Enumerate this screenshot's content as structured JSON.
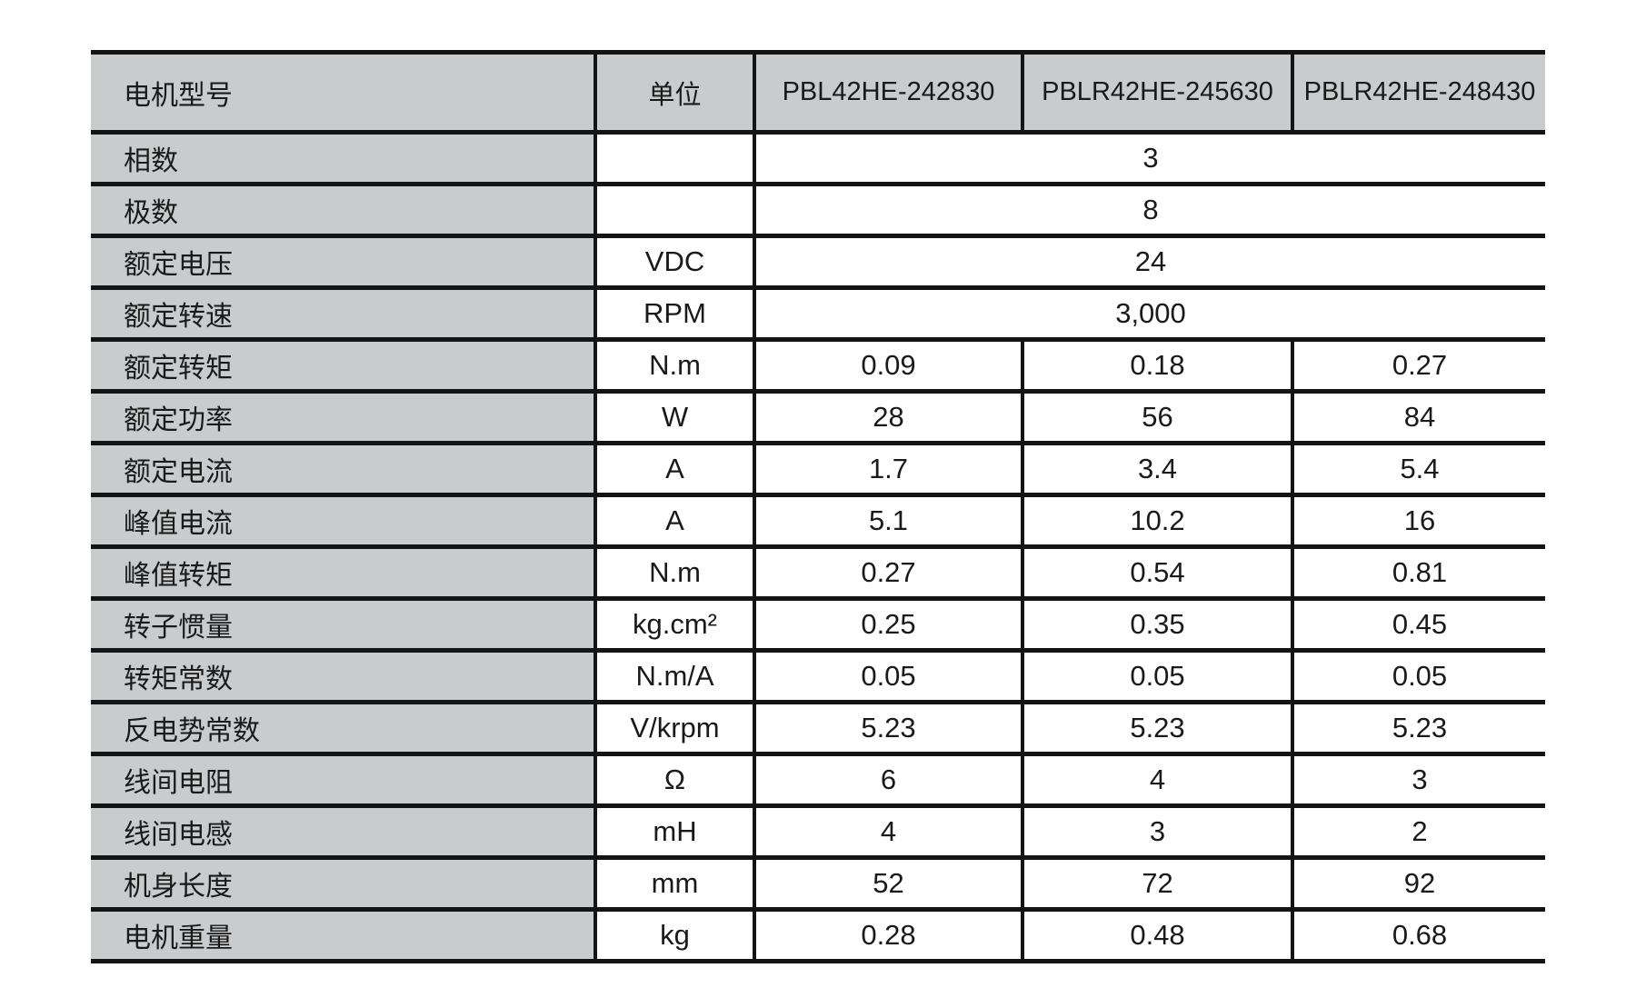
{
  "table": {
    "header": {
      "label": "电机型号",
      "unit": "单位",
      "models": [
        "PBL42HE-242830",
        "PBLR42HE-245630",
        "PBLR42HE-248430"
      ]
    },
    "rows": [
      {
        "label": "相数",
        "unit": "",
        "merged": "3"
      },
      {
        "label": "极数",
        "unit": "",
        "merged": "8"
      },
      {
        "label": "额定电压",
        "unit": "VDC",
        "merged": "24"
      },
      {
        "label": "额定转速",
        "unit": "RPM",
        "merged": "3,000"
      },
      {
        "label": "额定转矩",
        "unit": "N.m",
        "values": [
          "0.09",
          "0.18",
          "0.27"
        ]
      },
      {
        "label": "额定功率",
        "unit": "W",
        "values": [
          "28",
          "56",
          "84"
        ]
      },
      {
        "label": "额定电流",
        "unit": "A",
        "values": [
          "1.7",
          "3.4",
          "5.4"
        ]
      },
      {
        "label": "峰值电流",
        "unit": "A",
        "values": [
          "5.1",
          "10.2",
          "16"
        ]
      },
      {
        "label": "峰值转矩",
        "unit": "N.m",
        "values": [
          "0.27",
          "0.54",
          "0.81"
        ]
      },
      {
        "label": "转子惯量",
        "unit": "kg.cm²",
        "values": [
          "0.25",
          "0.35",
          "0.45"
        ]
      },
      {
        "label": "转矩常数",
        "unit": "N.m/A",
        "values": [
          "0.05",
          "0.05",
          "0.05"
        ]
      },
      {
        "label": "反电势常数",
        "unit": "V/krpm",
        "values": [
          "5.23",
          "5.23",
          "5.23"
        ]
      },
      {
        "label": "线间电阻",
        "unit": "Ω",
        "values": [
          "6",
          "4",
          "3"
        ]
      },
      {
        "label": "线间电感",
        "unit": "mH",
        "values": [
          "4",
          "3",
          "2"
        ]
      },
      {
        "label": "机身长度",
        "unit": "mm",
        "values": [
          "52",
          "72",
          "92"
        ]
      },
      {
        "label": "电机重量",
        "unit": "kg",
        "values": [
          "0.28",
          "0.48",
          "0.68"
        ]
      }
    ],
    "colors": {
      "header_bg": "#c9cbcc",
      "label_bg": "#c9cbcc",
      "border": "#141414"
    }
  }
}
